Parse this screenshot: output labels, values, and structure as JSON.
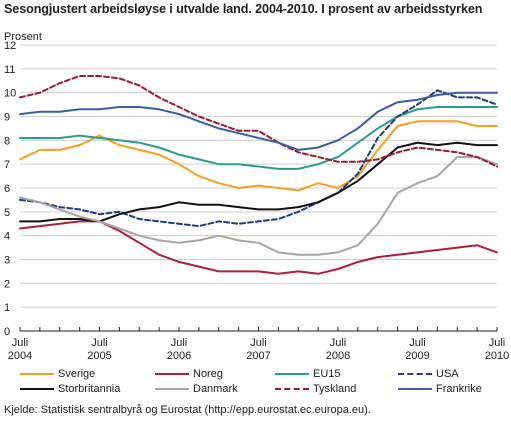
{
  "title": "Sesongjustert arbeidsløyse i utvalde land. 2004-2010. I prosent av arbeidsstyrken",
  "source": "Kjelde: Statistisk sentralbyrå og Eurostat (http://epp.eurostat.ec.europa.eu).",
  "chart_data": {
    "type": "line",
    "ylabel": "Prosent",
    "xlabel": "",
    "ylim": [
      0,
      12
    ],
    "yticks": [
      0,
      1,
      2,
      3,
      4,
      5,
      6,
      7,
      8,
      9,
      10,
      11,
      12
    ],
    "grid": "horizontal",
    "legend_placement": "bottom",
    "x_start": "2004-07",
    "x_end": "2010-07",
    "x": [
      "2004-07",
      "2004-10",
      "2005-01",
      "2005-04",
      "2005-07",
      "2005-10",
      "2006-01",
      "2006-04",
      "2006-07",
      "2006-10",
      "2007-01",
      "2007-04",
      "2007-07",
      "2007-10",
      "2008-01",
      "2008-04",
      "2008-07",
      "2008-10",
      "2009-01",
      "2009-04",
      "2009-07",
      "2009-10",
      "2010-01",
      "2010-04",
      "2010-07"
    ],
    "x_tick_labels": [
      {
        "line1": "Juli",
        "line2": "2004"
      },
      {
        "line1": "Juli",
        "line2": "2005"
      },
      {
        "line1": "Juli",
        "line2": "2006"
      },
      {
        "line1": "Juli",
        "line2": "2007"
      },
      {
        "line1": "Juli",
        "line2": "2008"
      },
      {
        "line1": "Juli",
        "line2": "2009"
      },
      {
        "line1": "Juli",
        "line2": "2010"
      }
    ],
    "series": [
      {
        "name": "Sverige",
        "color": "#f5a01f",
        "values": [
          7.2,
          7.6,
          7.6,
          7.8,
          8.2,
          7.8,
          7.6,
          7.4,
          7.0,
          6.5,
          6.2,
          6.0,
          6.1,
          6.0,
          5.9,
          6.2,
          6.0,
          6.5,
          7.6,
          8.6,
          8.8,
          8.8,
          8.8,
          8.6,
          8.6
        ]
      },
      {
        "name": "Noreg",
        "color": "#b01e3a",
        "values": [
          4.3,
          4.4,
          4.5,
          4.6,
          4.6,
          4.2,
          3.7,
          3.2,
          2.9,
          2.7,
          2.5,
          2.5,
          2.5,
          2.4,
          2.5,
          2.4,
          2.6,
          2.9,
          3.1,
          3.2,
          3.3,
          3.4,
          3.5,
          3.6,
          3.3
        ]
      },
      {
        "name": "EU15",
        "color": "#2a9d8f",
        "values": [
          8.1,
          8.1,
          8.1,
          8.2,
          8.1,
          8.0,
          7.9,
          7.7,
          7.4,
          7.2,
          7.0,
          7.0,
          6.9,
          6.8,
          6.8,
          7.0,
          7.3,
          7.9,
          8.5,
          9.0,
          9.3,
          9.4,
          9.4,
          9.4,
          9.4
        ]
      },
      {
        "name": "USA",
        "color": "#1f3c88",
        "dashed": true,
        "values": [
          5.5,
          5.4,
          5.2,
          5.1,
          4.9,
          5.0,
          4.7,
          4.6,
          4.5,
          4.4,
          4.6,
          4.5,
          4.6,
          4.7,
          5.0,
          5.4,
          5.8,
          6.6,
          8.1,
          9.0,
          9.5,
          10.1,
          9.8,
          9.8,
          9.5
        ]
      },
      {
        "name": "Storbritannia",
        "color": "#111111",
        "values": [
          4.6,
          4.6,
          4.7,
          4.7,
          4.6,
          4.9,
          5.1,
          5.2,
          5.4,
          5.3,
          5.3,
          5.2,
          5.1,
          5.1,
          5.2,
          5.4,
          5.8,
          6.3,
          7.0,
          7.7,
          7.9,
          7.8,
          7.9,
          7.8,
          7.8
        ]
      },
      {
        "name": "Danmark",
        "color": "#a6a6a6",
        "values": [
          5.6,
          5.4,
          5.1,
          4.8,
          4.6,
          4.3,
          4.0,
          3.8,
          3.7,
          3.8,
          4.0,
          3.8,
          3.7,
          3.3,
          3.2,
          3.2,
          3.3,
          3.6,
          4.5,
          5.8,
          6.2,
          6.5,
          7.3,
          7.3,
          7.0
        ]
      },
      {
        "name": "Tyskland",
        "color": "#9b1b30",
        "dashed": true,
        "values": [
          9.8,
          10.0,
          10.4,
          10.7,
          10.7,
          10.6,
          10.3,
          9.8,
          9.4,
          9.0,
          8.7,
          8.4,
          8.4,
          7.9,
          7.5,
          7.3,
          7.1,
          7.1,
          7.2,
          7.5,
          7.7,
          7.6,
          7.5,
          7.3,
          6.9
        ]
      },
      {
        "name": "Frankrike",
        "color": "#3a5fa6",
        "values": [
          9.1,
          9.2,
          9.2,
          9.3,
          9.3,
          9.4,
          9.4,
          9.3,
          9.1,
          8.8,
          8.5,
          8.3,
          8.1,
          7.9,
          7.6,
          7.7,
          8.0,
          8.5,
          9.2,
          9.6,
          9.7,
          9.9,
          10.0,
          10.0,
          10.0
        ]
      }
    ]
  }
}
